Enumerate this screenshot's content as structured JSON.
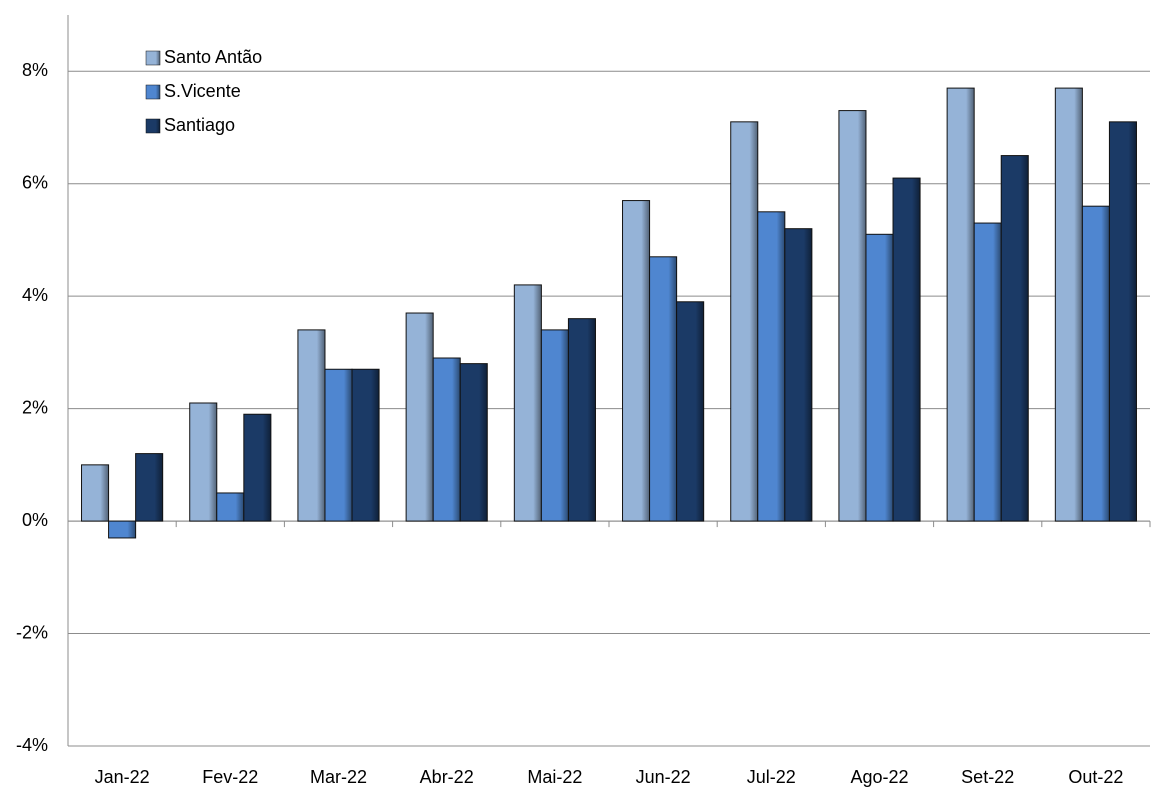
{
  "chart_data": {
    "type": "bar",
    "categories": [
      "Jan-22",
      "Fev-22",
      "Mar-22",
      "Abr-22",
      "Mai-22",
      "Jun-22",
      "Jul-22",
      "Ago-22",
      "Set-22",
      "Out-22"
    ],
    "series": [
      {
        "name": "Santo Antão",
        "color": "#95b3d7",
        "values": [
          1.0,
          2.1,
          3.4,
          3.7,
          4.2,
          5.7,
          7.1,
          7.3,
          7.7,
          7.7
        ]
      },
      {
        "name": "S.Vicente",
        "color": "#4f86d0",
        "values": [
          -0.3,
          0.5,
          2.7,
          2.9,
          3.4,
          4.7,
          5.5,
          5.1,
          5.3,
          5.6
        ]
      },
      {
        "name": "Santiago",
        "color": "#1b3a66",
        "values": [
          1.2,
          1.9,
          2.7,
          2.8,
          3.6,
          3.9,
          5.2,
          6.1,
          6.5,
          7.1
        ]
      }
    ],
    "ylim": [
      -4,
      9
    ],
    "yticks": [
      {
        "value": -4,
        "label": "-4%"
      },
      {
        "value": -2,
        "label": "-2%"
      },
      {
        "value": 0,
        "label": "0%"
      },
      {
        "value": 2,
        "label": "2%"
      },
      {
        "value": 4,
        "label": "4%"
      },
      {
        "value": 6,
        "label": "6%"
      },
      {
        "value": 8,
        "label": "8%"
      }
    ],
    "grid": true,
    "legend": "upper-left"
  }
}
